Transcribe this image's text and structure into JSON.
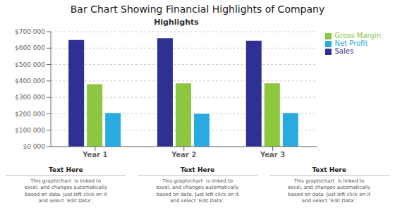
{
  "chart_data": {
    "type": "bar",
    "title": "Bar Chart Showing Financial Highlights of Company",
    "subtitle": "Highlights",
    "categories": [
      "Year 1",
      "Year 2",
      "Year 3"
    ],
    "series": [
      {
        "name": "Sales",
        "color": "#2E3192",
        "values": [
          650000,
          660000,
          645000
        ]
      },
      {
        "name": "Gross Margin",
        "color": "#8DC63F",
        "values": [
          380000,
          385000,
          385000
        ]
      },
      {
        "name": "Net Profit",
        "color": "#29ABE2",
        "values": [
          205000,
          200000,
          205000
        ]
      }
    ],
    "ylim": [
      0,
      700000
    ],
    "yticks": [
      {
        "value": 0,
        "label": "$0 000"
      },
      {
        "value": 100000,
        "label": "$100 000"
      },
      {
        "value": 200000,
        "label": "$200 000"
      },
      {
        "value": 300000,
        "label": "$300 000"
      },
      {
        "value": 400000,
        "label": "$400 000"
      },
      {
        "value": 500000,
        "label": "$500 000"
      },
      {
        "value": 600000,
        "label": "$600 000"
      },
      {
        "value": 700000,
        "label": "$700 000"
      }
    ],
    "grid": true,
    "legend": "right",
    "annotations": [
      {
        "header": "Text Here",
        "body": "This graph/chart  is linked to\nexcel, and changes automatically\nbased on data. Just left click on it\nand select ‘Edit Data’."
      },
      {
        "header": "Text Here",
        "body": "This graph/chart  is linked to\nexcel, and changes automatically\nbased on data. Just left click on it\nand select ‘Edit Data’."
      },
      {
        "header": "Text Here",
        "body": "This graph/chart  is linked to\nexcel, and changes automatically\nbased on data. Just left click on it\nand select ‘Edit Data’."
      }
    ]
  }
}
